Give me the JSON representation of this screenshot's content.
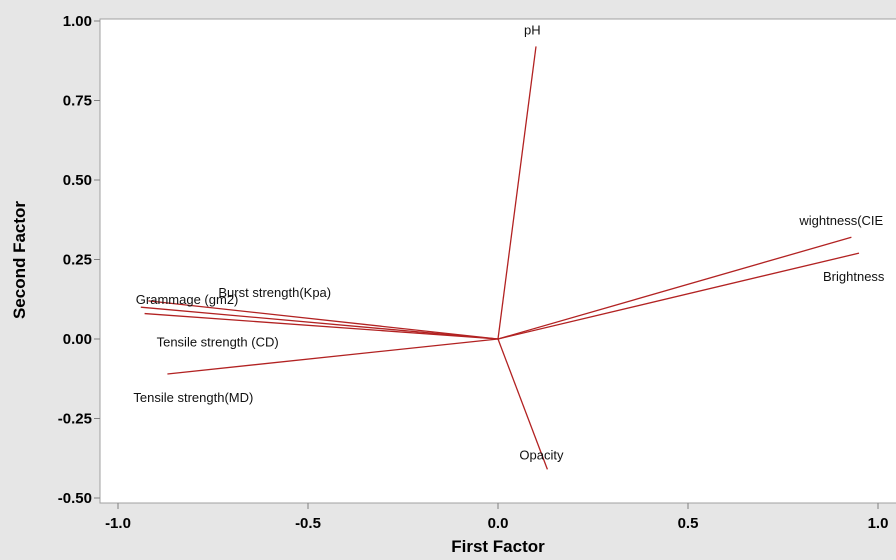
{
  "chart_data": {
    "type": "line",
    "title": "",
    "xlabel": "First Factor",
    "ylabel": "Second Factor",
    "xlim": [
      -1.0,
      1.0
    ],
    "ylim": [
      -0.5,
      1.0
    ],
    "x_ticks": [
      "-1.0",
      "-0.5",
      "0.0",
      "0.5",
      "1.0"
    ],
    "y_ticks": [
      "1.00",
      "0.75",
      "0.50",
      "0.25",
      "0.00",
      "-0.25",
      "-0.50"
    ],
    "grid": false,
    "line_color": "#b22222",
    "vectors": [
      {
        "label": "pH",
        "x": 0.1,
        "y": 0.92
      },
      {
        "label": "wightness(CIE",
        "x": 0.93,
        "y": 0.32
      },
      {
        "label": "Brightness",
        "x": 0.95,
        "y": 0.27
      },
      {
        "label": "Burst strength(Kpa)",
        "x": -0.92,
        "y": 0.12
      },
      {
        "label": "Grammage (gm2)",
        "x": -0.94,
        "y": 0.1
      },
      {
        "label": "Tensile strength (CD)",
        "x": -0.93,
        "y": 0.08
      },
      {
        "label": "Tensile strength(MD)",
        "x": -0.87,
        "y": -0.11
      },
      {
        "label": "Opacity",
        "x": 0.13,
        "y": -0.41
      }
    ]
  }
}
